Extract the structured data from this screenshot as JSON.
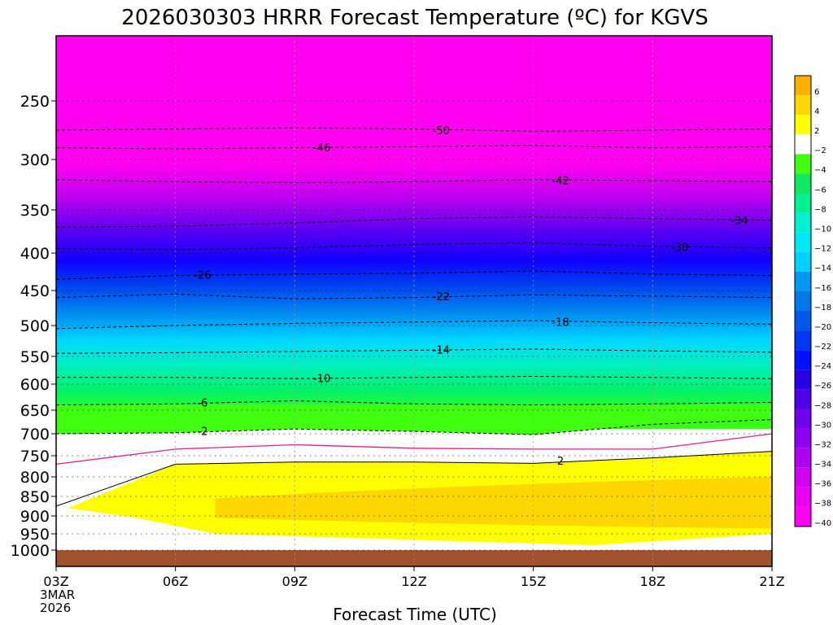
{
  "chart_data": {
    "type": "heatmap",
    "title": "2026030303 HRRR Forecast Temperature (ºC) for KGVS",
    "xlabel": "Forecast Time (UTC)",
    "ylabel": "",
    "x_ticks": [
      {
        "hour": 0,
        "label": "03Z",
        "sub1": "3MAR",
        "sub2": "2026"
      },
      {
        "hour": 3,
        "label": "06Z"
      },
      {
        "hour": 6,
        "label": "09Z"
      },
      {
        "hour": 9,
        "label": "12Z"
      },
      {
        "hour": 12,
        "label": "15Z"
      },
      {
        "hour": 15,
        "label": "18Z"
      },
      {
        "hour": 18,
        "label": "21Z"
      }
    ],
    "xlim": [
      0,
      18
    ],
    "y_ticks": [
      250,
      300,
      350,
      400,
      450,
      500,
      550,
      600,
      650,
      700,
      750,
      800,
      850,
      900,
      950,
      1000
    ],
    "ylim": [
      1032,
      200
    ],
    "colorbar": {
      "labels": [
        "6",
        "4",
        "2",
        "−2",
        "−4",
        "−6",
        "−8",
        "−10",
        "−12",
        "−14",
        "−16",
        "−18",
        "−20",
        "−22",
        "−24",
        "−26",
        "−28",
        "−30",
        "−32",
        "−34",
        "−36",
        "−38",
        "−40"
      ],
      "colors": [
        "#ffb000",
        "#ffd700",
        "#ffff00",
        "#ffffff",
        "#40ff10",
        "#10e860",
        "#00f090",
        "#00f0d0",
        "#00e8f8",
        "#00d0ff",
        "#0098f0",
        "#0078e8",
        "#0058e8",
        "#0038f0",
        "#0010ff",
        "#2800e8",
        "#5000e8",
        "#7000f0",
        "#9000f0",
        "#b000f0",
        "#d000f0",
        "#e800f0",
        "#ff00f0"
      ]
    },
    "contours": [
      {
        "label": "-50",
        "p": [
          275,
          274,
          273,
          274,
          276,
          275,
          274
        ]
      },
      {
        "label": "-46",
        "p": [
          290,
          291,
          290,
          289,
          288,
          290,
          289
        ]
      },
      {
        "label": "-42",
        "p": [
          320,
          322,
          323,
          322,
          320,
          321,
          322
        ]
      },
      {
        "label": "-34",
        "p": [
          370,
          369,
          365,
          360,
          358,
          360,
          362
        ]
      },
      {
        "label": "-30",
        "p": [
          395,
          396,
          394,
          390,
          388,
          392,
          394
        ]
      },
      {
        "label": "-26",
        "p": [
          435,
          430,
          428,
          427,
          424,
          428,
          430
        ]
      },
      {
        "label": "-22",
        "p": [
          460,
          455,
          462,
          460,
          456,
          458,
          460
        ]
      },
      {
        "label": "-18",
        "p": [
          505,
          500,
          497,
          495,
          493,
          496,
          498
        ]
      },
      {
        "label": "-14",
        "p": [
          545,
          544,
          542,
          540,
          538,
          541,
          543
        ]
      },
      {
        "label": "-10",
        "p": [
          588,
          588,
          590,
          588,
          586,
          588,
          590
        ]
      },
      {
        "label": "-6",
        "p": [
          640,
          638,
          632,
          638,
          640,
          638,
          635
        ]
      },
      {
        "label": "-2",
        "p": [
          700,
          698,
          690,
          695,
          702,
          680,
          670
        ]
      },
      {
        "label": "2",
        "p": [
          875,
          770,
          765,
          765,
          768,
          755,
          740
        ]
      }
    ],
    "regions": {
      "ground_top_hpa": 1000,
      "warm_core_hpa": [
        850,
        900
      ],
      "max_temp": 4.4
    }
  }
}
